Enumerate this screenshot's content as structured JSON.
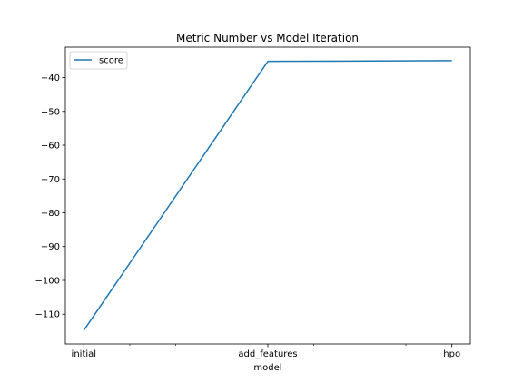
{
  "chart_data": {
    "type": "line",
    "title": "Metric Number vs Model Iteration",
    "xlabel": "model",
    "ylabel": "",
    "categories": [
      "initial",
      "add_features",
      "hpo"
    ],
    "series": [
      {
        "name": "score",
        "values": [
          -114.8,
          -35.2,
          -35.0
        ],
        "color": "#1f77b4"
      }
    ],
    "yticks": [
      -110,
      -100,
      -90,
      -80,
      -70,
      -60,
      -50,
      -40
    ],
    "ytick_labels": [
      "−110",
      "−100",
      "−90",
      "−80",
      "−70",
      "−60",
      "−50",
      "−40"
    ],
    "ylim": [
      -118.8,
      -31.0
    ],
    "minor_xticks": [
      0.25,
      0.5,
      0.75,
      1.25,
      1.5,
      1.75
    ],
    "grid": false,
    "legend_position": "upper-left"
  }
}
